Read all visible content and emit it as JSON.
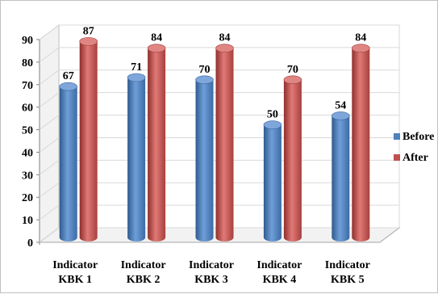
{
  "chart_data": {
    "type": "bar",
    "categories": [
      [
        "Indicator",
        "KBK 1"
      ],
      [
        "Indicator",
        "KBK 2"
      ],
      [
        "Indicator",
        "KBK 3"
      ],
      [
        "Indicator",
        "KBK 4"
      ],
      [
        "Indicator",
        "KBK 5"
      ]
    ],
    "series": [
      {
        "name": "Before",
        "values": [
          67,
          71,
          70,
          50,
          54
        ],
        "color": "#4F81BD"
      },
      {
        "name": "After",
        "values": [
          87,
          84,
          84,
          70,
          84
        ],
        "color": "#C0504D"
      }
    ],
    "ylim": [
      0,
      90
    ],
    "yticks": [
      0,
      10,
      20,
      30,
      40,
      50,
      60,
      70,
      80,
      90
    ],
    "grid": true,
    "style": "3d-cylinder",
    "legend_position": "right"
  }
}
